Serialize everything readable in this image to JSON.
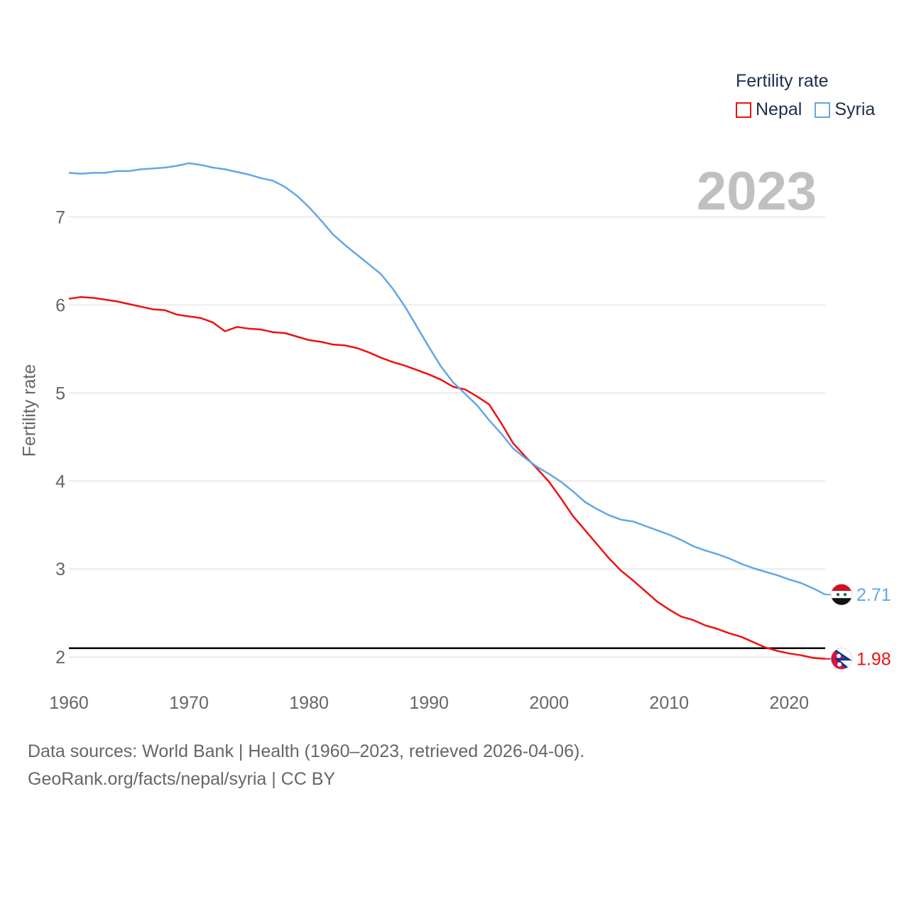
{
  "colors": {
    "nepal": "#ee1111",
    "syria": "#62a7e8",
    "grid": "#e6e6e6",
    "axis_text": "#666666",
    "reference_line": "#000000",
    "year": "#c0c0c0"
  },
  "legend": {
    "title": "Fertility rate",
    "items": [
      "Nepal",
      "Syria"
    ]
  },
  "year_label": "2023",
  "footer": {
    "line1": "Data sources: World Bank | Health (1960–2023, retrieved 2026-04-06).",
    "line2": "GeoRank.org/facts/nepal/syria | CC BY"
  },
  "chart_data": {
    "type": "line",
    "title": "",
    "xlabel": "",
    "ylabel": "Fertility rate",
    "xlim": [
      1960,
      2023
    ],
    "ylim": [
      1.8,
      7.85
    ],
    "xticks": [
      1960,
      1970,
      1980,
      1990,
      2000,
      2010,
      2020
    ],
    "yticks": [
      2,
      3,
      4,
      5,
      6,
      7
    ],
    "reference_line": 2.1,
    "x": [
      1960,
      1961,
      1962,
      1963,
      1964,
      1965,
      1966,
      1967,
      1968,
      1969,
      1970,
      1971,
      1972,
      1973,
      1974,
      1975,
      1976,
      1977,
      1978,
      1979,
      1980,
      1981,
      1982,
      1983,
      1984,
      1985,
      1986,
      1987,
      1988,
      1989,
      1990,
      1991,
      1992,
      1993,
      1994,
      1995,
      1996,
      1997,
      1998,
      1999,
      2000,
      2001,
      2002,
      2003,
      2004,
      2005,
      2006,
      2007,
      2008,
      2009,
      2010,
      2011,
      2012,
      2013,
      2014,
      2015,
      2016,
      2017,
      2018,
      2019,
      2020,
      2021,
      2022,
      2023
    ],
    "series": [
      {
        "name": "Nepal",
        "color": "#ee1111",
        "end_label": "1.98",
        "values": [
          6.07,
          6.09,
          6.08,
          6.06,
          6.04,
          6.01,
          5.98,
          5.95,
          5.94,
          5.89,
          5.87,
          5.85,
          5.8,
          5.7,
          5.75,
          5.73,
          5.72,
          5.69,
          5.68,
          5.64,
          5.6,
          5.58,
          5.55,
          5.54,
          5.51,
          5.46,
          5.4,
          5.35,
          5.31,
          5.26,
          5.21,
          5.15,
          5.07,
          5.04,
          4.96,
          4.87,
          4.66,
          4.43,
          4.28,
          4.14,
          3.99,
          3.8,
          3.6,
          3.44,
          3.28,
          3.12,
          2.98,
          2.87,
          2.75,
          2.63,
          2.54,
          2.46,
          2.42,
          2.36,
          2.32,
          2.27,
          2.23,
          2.17,
          2.11,
          2.07,
          2.04,
          2.02,
          1.99,
          1.98
        ]
      },
      {
        "name": "Syria",
        "color": "#62a7e8",
        "end_label": "2.71",
        "values": [
          7.5,
          7.49,
          7.5,
          7.5,
          7.52,
          7.52,
          7.54,
          7.55,
          7.56,
          7.58,
          7.61,
          7.59,
          7.56,
          7.54,
          7.51,
          7.48,
          7.44,
          7.41,
          7.34,
          7.24,
          7.11,
          6.96,
          6.8,
          6.68,
          6.57,
          6.46,
          6.35,
          6.18,
          5.98,
          5.75,
          5.52,
          5.3,
          5.12,
          4.99,
          4.86,
          4.69,
          4.54,
          4.37,
          4.26,
          4.16,
          4.08,
          3.99,
          3.88,
          3.76,
          3.68,
          3.61,
          3.56,
          3.54,
          3.49,
          3.44,
          3.39,
          3.33,
          3.26,
          3.21,
          3.17,
          3.12,
          3.06,
          3.01,
          2.97,
          2.93,
          2.88,
          2.84,
          2.78,
          2.71
        ]
      }
    ]
  }
}
